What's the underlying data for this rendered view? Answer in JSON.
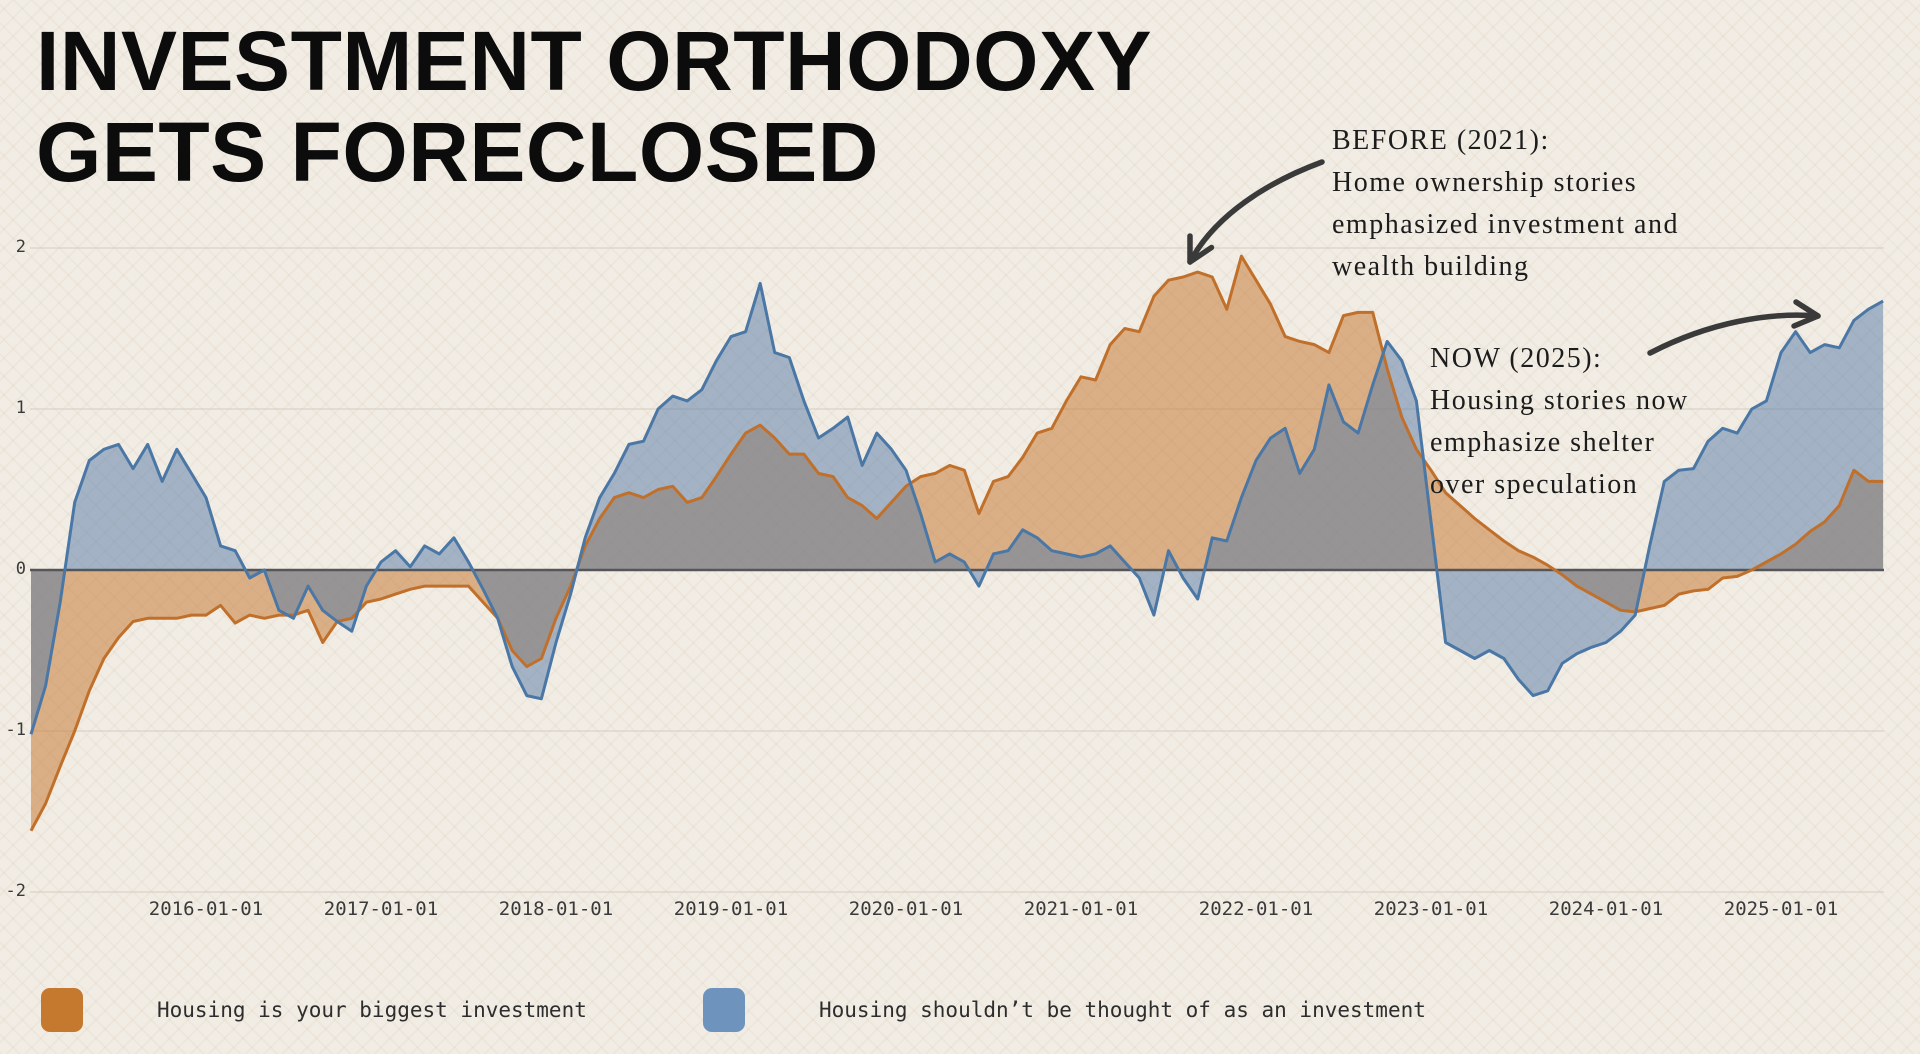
{
  "title": {
    "line1": "INVESTMENT ORTHODOXY",
    "line2": "GETS FORECLOSED"
  },
  "annotations": {
    "before": {
      "lines": [
        "BEFORE (2021):",
        "Home ownership stories",
        "emphasized investment and",
        "wealth building"
      ]
    },
    "now": {
      "lines": [
        "NOW (2025):",
        "Housing stories now",
        "emphasize shelter",
        "over speculation"
      ]
    }
  },
  "legend": [
    {
      "label": "Housing is your biggest investment",
      "color": "#c4792f"
    },
    {
      "label": "Housing shouldn’t be thought of as an investment",
      "color": "#6e93bd"
    }
  ],
  "chart_data": {
    "type": "area",
    "title": "Investment orthodoxy gets foreclosed",
    "xlabel": "",
    "ylabel": "",
    "ylim": [
      -2,
      2
    ],
    "grid": true,
    "legend_position": "bottom-left",
    "x_unit": "decimal_year",
    "x_start": 2015.0,
    "x_step": 0.0833333,
    "xticks": [
      {
        "label": "2016-01-01",
        "t": 2016
      },
      {
        "label": "2017-01-01",
        "t": 2017
      },
      {
        "label": "2018-01-01",
        "t": 2018
      },
      {
        "label": "2019-01-01",
        "t": 2019
      },
      {
        "label": "2020-01-01",
        "t": 2020
      },
      {
        "label": "2021-01-01",
        "t": 2021
      },
      {
        "label": "2022-01-01",
        "t": 2022
      },
      {
        "label": "2023-01-01",
        "t": 2023
      },
      {
        "label": "2024-01-01",
        "t": 2024
      },
      {
        "label": "2025-01-01",
        "t": 2025
      }
    ],
    "yticks": [
      {
        "label": "2",
        "v": 2
      },
      {
        "label": "1",
        "v": 1
      },
      {
        "label": "0",
        "v": 0
      },
      {
        "label": "-1",
        "v": -1
      },
      {
        "label": "-2",
        "v": -2
      }
    ],
    "zero_baseline": true,
    "series": [
      {
        "name": "Housing is your biggest investment",
        "line_color": "#c0702a",
        "fill_color": "rgba(198,119,48,0.52)",
        "values": [
          -1.62,
          -1.45,
          -1.22,
          -1.0,
          -0.75,
          -0.55,
          -0.42,
          -0.32,
          -0.3,
          -0.3,
          -0.3,
          -0.28,
          -0.28,
          -0.22,
          -0.33,
          -0.28,
          -0.3,
          -0.28,
          -0.28,
          -0.25,
          -0.45,
          -0.32,
          -0.3,
          -0.2,
          -0.18,
          -0.15,
          -0.12,
          -0.1,
          -0.1,
          -0.1,
          -0.1,
          -0.2,
          -0.3,
          -0.5,
          -0.6,
          -0.55,
          -0.3,
          -0.1,
          0.15,
          0.32,
          0.45,
          0.48,
          0.45,
          0.5,
          0.52,
          0.42,
          0.45,
          0.58,
          0.72,
          0.85,
          0.9,
          0.82,
          0.72,
          0.72,
          0.6,
          0.58,
          0.45,
          0.4,
          0.32,
          0.42,
          0.52,
          0.58,
          0.6,
          0.65,
          0.62,
          0.35,
          0.55,
          0.58,
          0.7,
          0.85,
          0.88,
          1.05,
          1.2,
          1.18,
          1.4,
          1.5,
          1.48,
          1.7,
          1.8,
          1.82,
          1.85,
          1.82,
          1.62,
          1.95,
          1.8,
          1.65,
          1.45,
          1.42,
          1.4,
          1.35,
          1.58,
          1.6,
          1.6,
          1.25,
          0.95,
          0.75,
          0.62,
          0.48,
          0.4,
          0.32,
          0.25,
          0.18,
          0.12,
          0.08,
          0.03,
          -0.03,
          -0.1,
          -0.15,
          -0.2,
          -0.25,
          -0.26,
          -0.24,
          -0.22,
          -0.15,
          -0.13,
          -0.12,
          -0.05,
          -0.04,
          0.0,
          0.05,
          0.1,
          0.16,
          0.24,
          0.3,
          0.4,
          0.62,
          0.55,
          0.55
        ]
      },
      {
        "name": "Housing shouldn’t be thought of as an investment",
        "line_color": "#4a77a5",
        "fill_color": "rgba(84,122,166,0.5)",
        "values": [
          -1.02,
          -0.72,
          -0.2,
          0.42,
          0.68,
          0.75,
          0.78,
          0.63,
          0.78,
          0.55,
          0.75,
          0.6,
          0.45,
          0.15,
          0.12,
          -0.05,
          0.0,
          -0.25,
          -0.3,
          -0.1,
          -0.25,
          -0.32,
          -0.38,
          -0.1,
          0.05,
          0.12,
          0.02,
          0.15,
          0.1,
          0.2,
          0.05,
          -0.12,
          -0.3,
          -0.6,
          -0.78,
          -0.8,
          -0.45,
          -0.15,
          0.2,
          0.45,
          0.6,
          0.78,
          0.8,
          1.0,
          1.08,
          1.05,
          1.12,
          1.3,
          1.45,
          1.48,
          1.78,
          1.35,
          1.32,
          1.05,
          0.82,
          0.88,
          0.95,
          0.65,
          0.85,
          0.75,
          0.62,
          0.35,
          0.05,
          0.1,
          0.05,
          -0.1,
          0.1,
          0.12,
          0.25,
          0.2,
          0.12,
          0.1,
          0.08,
          0.1,
          0.15,
          0.05,
          -0.05,
          -0.28,
          0.12,
          -0.05,
          -0.18,
          0.2,
          0.18,
          0.45,
          0.68,
          0.82,
          0.88,
          0.6,
          0.75,
          1.15,
          0.92,
          0.85,
          1.15,
          1.42,
          1.3,
          1.05,
          0.3,
          -0.45,
          -0.5,
          -0.55,
          -0.5,
          -0.55,
          -0.68,
          -0.78,
          -0.75,
          -0.58,
          -0.52,
          -0.48,
          -0.45,
          -0.38,
          -0.28,
          0.15,
          0.55,
          0.62,
          0.63,
          0.8,
          0.88,
          0.85,
          1.0,
          1.05,
          1.35,
          1.48,
          1.35,
          1.4,
          1.38,
          1.55,
          1.62,
          1.67
        ]
      }
    ]
  }
}
